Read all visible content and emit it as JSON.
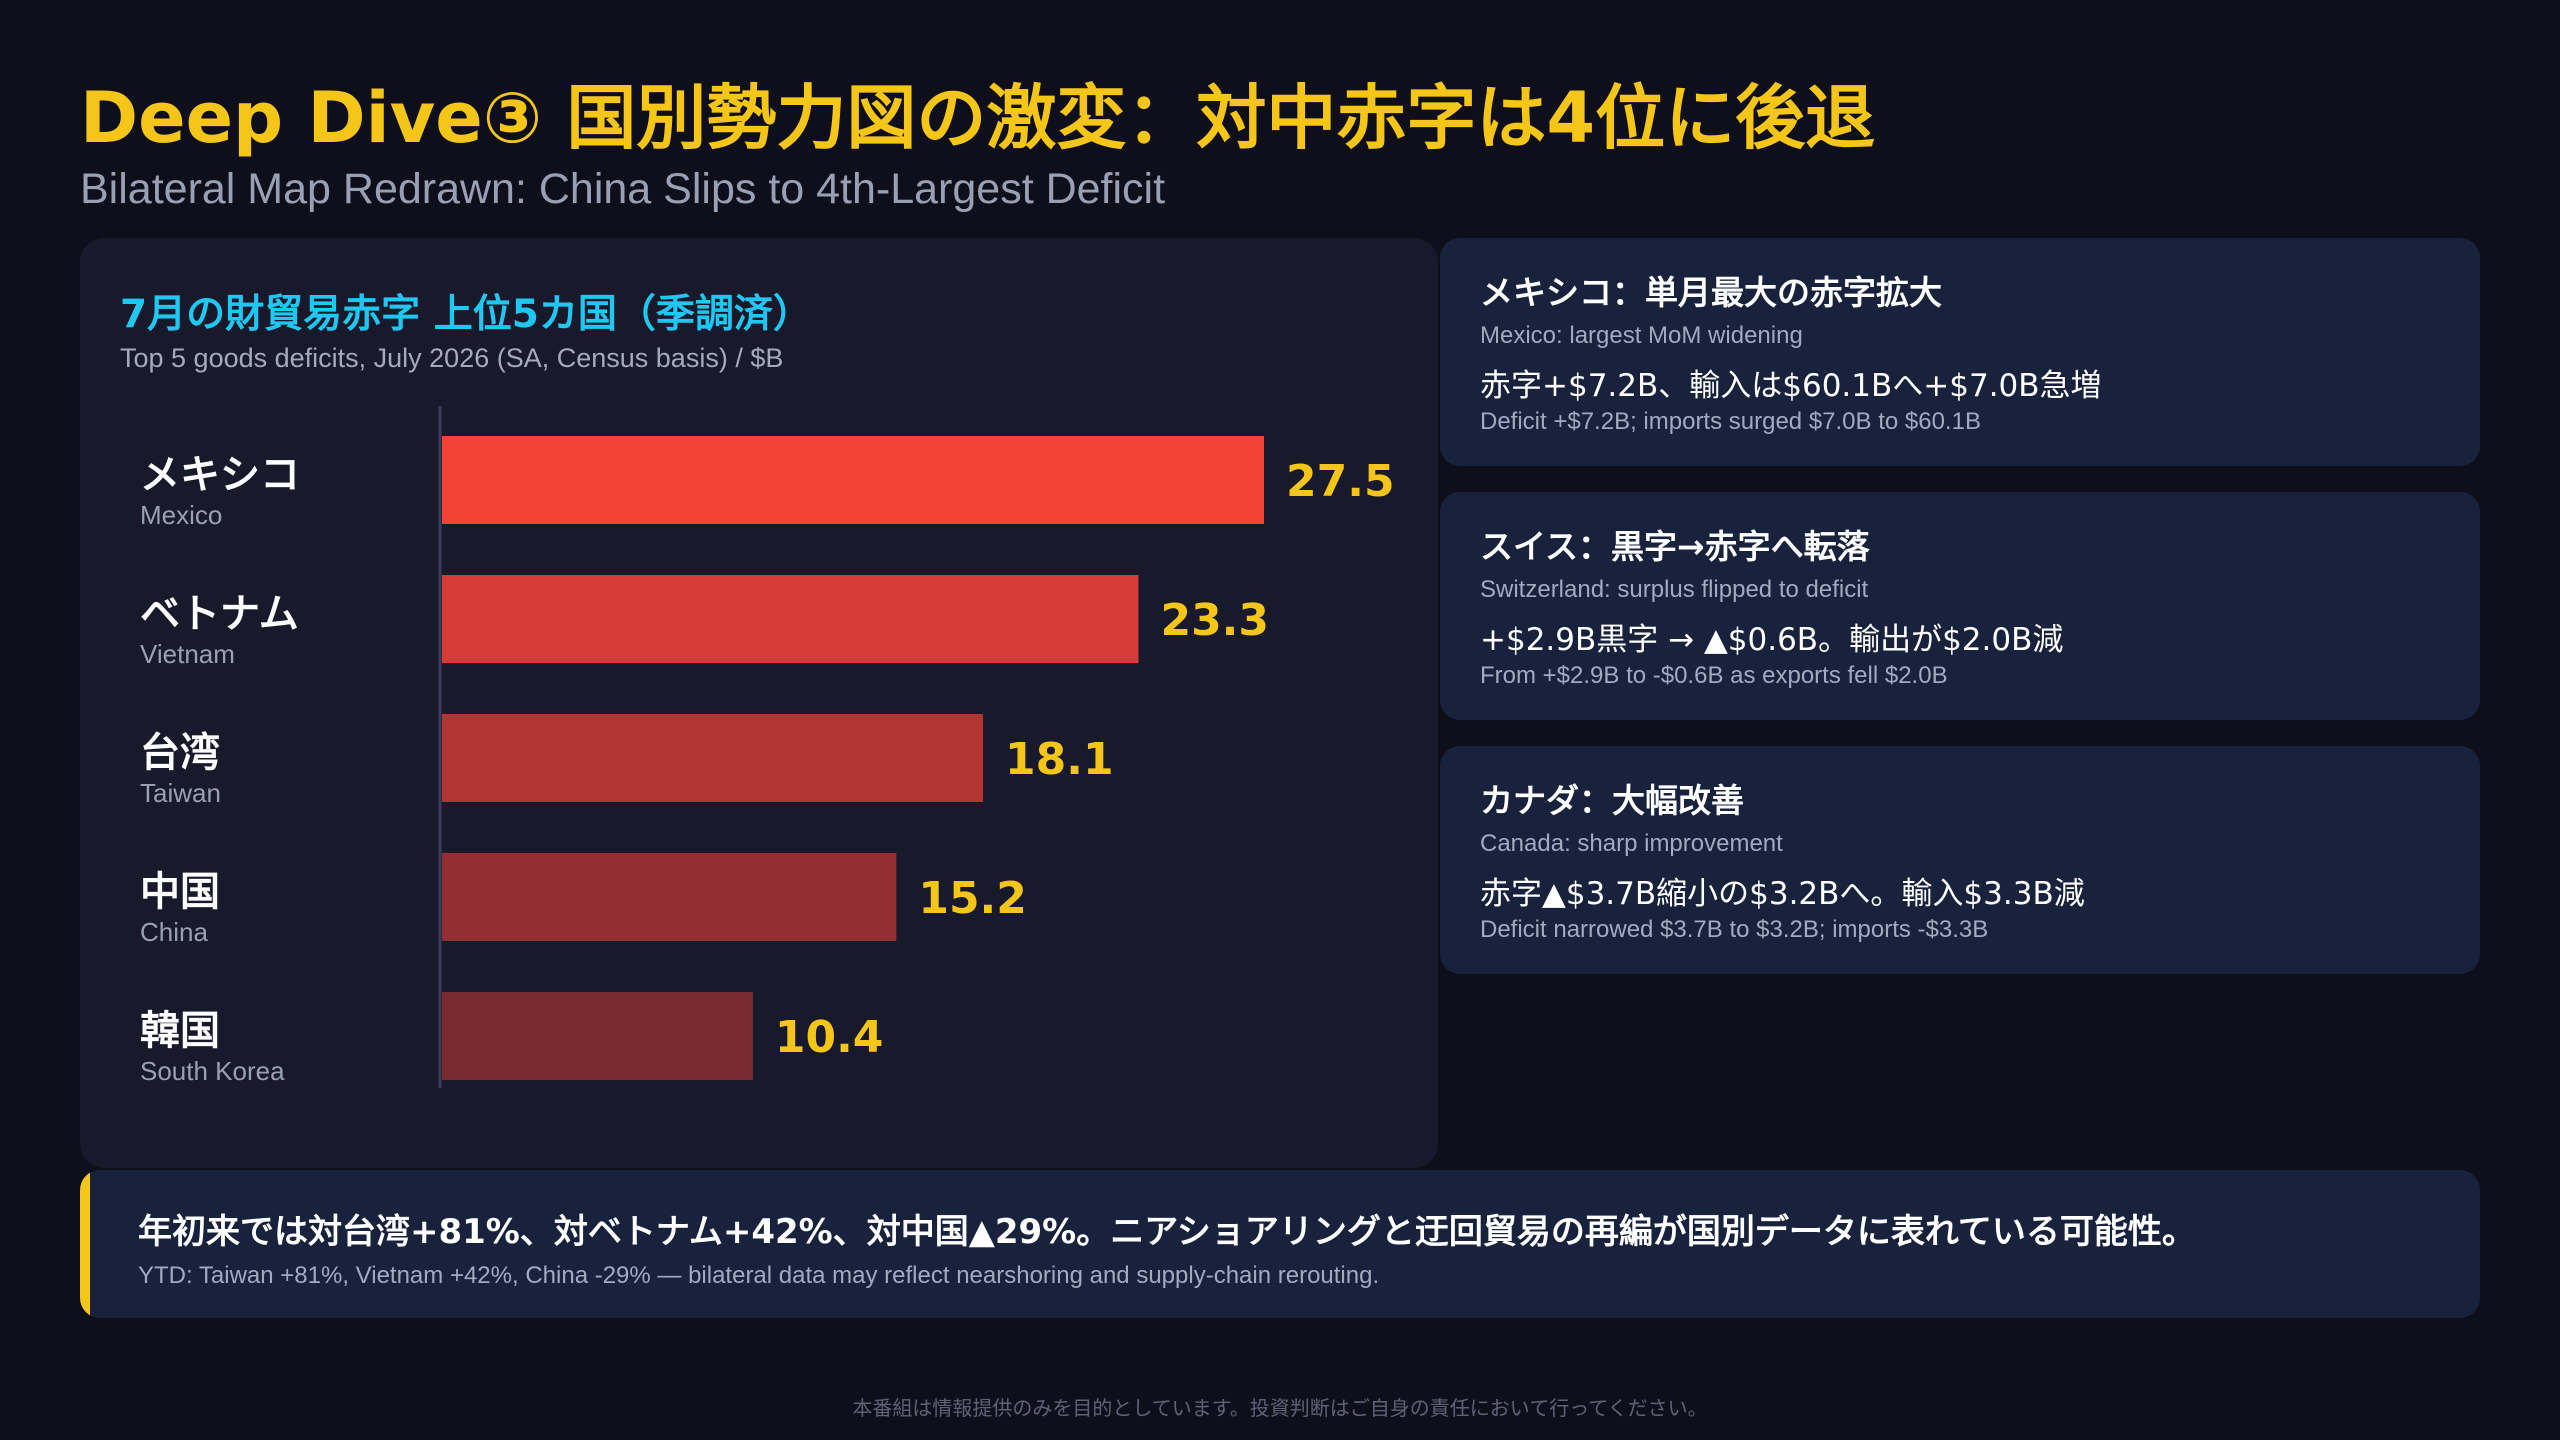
{
  "header": {
    "title": "Deep Dive③ 国別勢力図の激変：対中赤字は4位に後退",
    "subtitle": "Bilateral Map Redrawn: China Slips to 4th-Largest Deficit"
  },
  "chart_data": {
    "type": "bar",
    "orientation": "horizontal",
    "title": "7月の財貿易赤字 上位5カ国（季調済）",
    "subtitle": "Top 5 goods deficits, July 2026 (SA, Census basis) / $B",
    "categories": [
      {
        "ja": "メキシコ",
        "en": "Mexico"
      },
      {
        "ja": "ベトナム",
        "en": "Vietnam"
      },
      {
        "ja": "台湾",
        "en": "Taiwan"
      },
      {
        "ja": "中国",
        "en": "China"
      },
      {
        "ja": "韓国",
        "en": "South Korea"
      }
    ],
    "values": [
      27.5,
      23.3,
      18.1,
      15.2,
      10.4
    ],
    "value_labels": [
      "27.5",
      "23.3",
      "18.1",
      "15.2",
      "10.4"
    ],
    "xlim": [
      0,
      30
    ],
    "grid": false,
    "legend": "none",
    "bar_colors": [
      "#f44336",
      "#d63b38",
      "#b23534",
      "#922f33",
      "#7a2a31"
    ],
    "label_color": "#f5c518"
  },
  "cards": [
    {
      "title": "メキシコ：単月最大の赤字拡大",
      "sub": "Mexico: largest MoM widening",
      "main": "赤字+$7.2B、輸入は$60.1Bへ+$7.0B急増",
      "foot": "Deficit +$7.2B; imports surged $7.0B to $60.1B"
    },
    {
      "title": "スイス：黒字→赤字へ転落",
      "sub": "Switzerland: surplus flipped to deficit",
      "main": "+$2.9B黒字 → ▲$0.6B。輸出が$2.0B減",
      "foot": "From +$2.9B to -$0.6B as exports fell $2.0B"
    },
    {
      "title": "カナダ：大幅改善",
      "sub": "Canada: sharp improvement",
      "main": "赤字▲$3.7B縮小の$3.2Bへ。輸入$3.3B減",
      "foot": "Deficit narrowed $3.7B to $3.2B; imports -$3.3B"
    }
  ],
  "bottom": {
    "main": "年初来では対台湾+81%、対ベトナム+42%、対中国▲29%。ニアショアリングと迂回貿易の再編が国別データに表れている可能性。",
    "sub": "YTD: Taiwan +81%, Vietnam +42%, China -29% — bilateral data may reflect nearshoring and supply-chain rerouting."
  },
  "disclaimer": "本番組は情報提供のみを目的としています。投資判断はご自身の責任において行ってください。",
  "colors": {
    "accent": "#f5c518",
    "chart_title": "#1ec8f2",
    "background": "#0e0f1b",
    "panel": "#181a2c",
    "card": "#18223d"
  }
}
